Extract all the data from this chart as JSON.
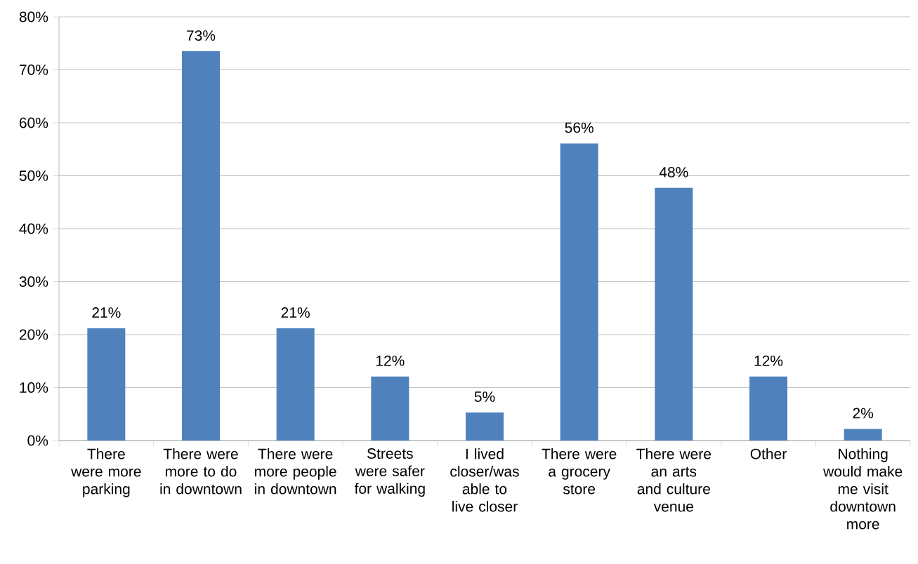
{
  "chart_data": {
    "type": "bar",
    "categories": [
      "There were more parking",
      "There were more to do in downtown",
      "There were more people in downtown",
      "Streets were safer for walking",
      "I lived closer/was able to live closer",
      "There were a grocery store",
      "There were an arts and culture venue",
      "Other",
      "Nothing would make me visit downtown more"
    ],
    "values": [
      21.2,
      73.5,
      21.2,
      12.1,
      5.3,
      56.1,
      47.7,
      12.1,
      2.2
    ],
    "value_labels": [
      "21%",
      "73%",
      "21%",
      "12%",
      "5%",
      "56%",
      "48%",
      "12%",
      "2%"
    ],
    "color": "#4f81bd",
    "ylim": [
      0,
      80
    ],
    "yticks": [
      {
        "value": 0,
        "label": "0%"
      },
      {
        "value": 10,
        "label": "10%"
      },
      {
        "value": 20,
        "label": "20%"
      },
      {
        "value": 30,
        "label": "30%"
      },
      {
        "value": 40,
        "label": "40%"
      },
      {
        "value": 50,
        "label": "50%"
      },
      {
        "value": 60,
        "label": "60%"
      },
      {
        "value": 70,
        "label": "70%"
      },
      {
        "value": 80,
        "label": "80%"
      }
    ],
    "grid": "y"
  }
}
